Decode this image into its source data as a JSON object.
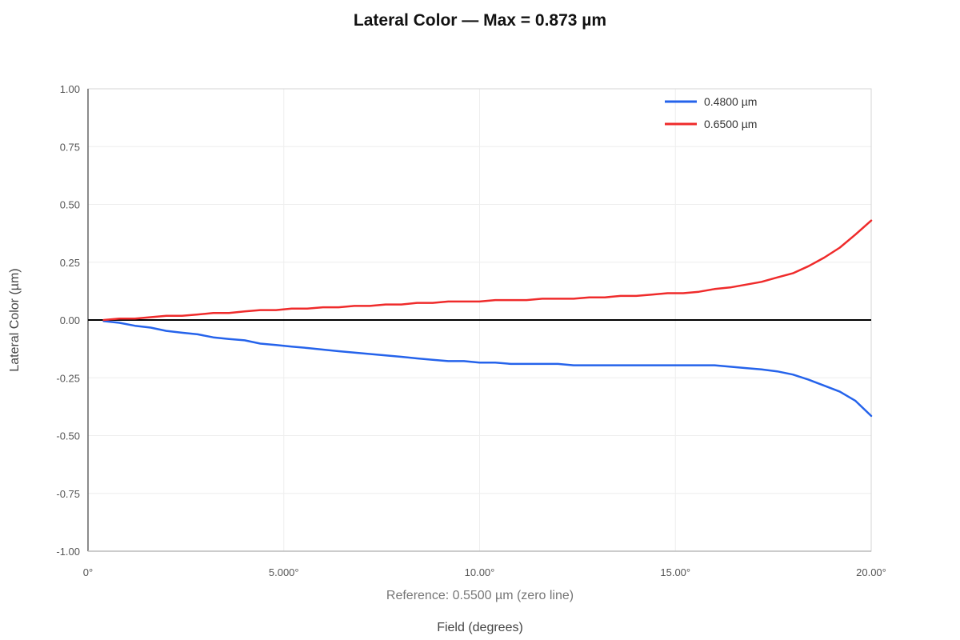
{
  "chart_data": {
    "type": "line",
    "title": "Lateral Color — Max = 0.873 µm",
    "xlabel": "Field (degrees)",
    "ylabel": "Lateral Color (µm)",
    "note": "Reference: 0.5500 µm (zero line)",
    "xlim": [
      0,
      20
    ],
    "ylim": [
      -1.0,
      1.0
    ],
    "x_ticks": [
      0,
      5,
      10,
      15,
      20
    ],
    "x_tick_labels": [
      "0°",
      "5.000°",
      "10.00°",
      "15.00°",
      "20.00°"
    ],
    "y_ticks": [
      1.0,
      0.75,
      0.5,
      0.25,
      0.0,
      -0.25,
      -0.5,
      -0.75,
      -1.0
    ],
    "y_tick_labels": [
      "1.00",
      "0.75",
      "0.50",
      "0.25",
      "0.00",
      "-0.25",
      "-0.50",
      "-0.75",
      "-1.00"
    ],
    "grid": true,
    "zero_line": true,
    "legend_position": "top-right",
    "series": [
      {
        "name": "0.4800 µm",
        "color": "#2563eb",
        "x": [
          0.4,
          0.8,
          1.2,
          1.6,
          2.0,
          2.4,
          2.8,
          3.2,
          3.6,
          4.0,
          4.4,
          4.8,
          5.2,
          5.6,
          6.0,
          6.4,
          6.8,
          7.2,
          7.6,
          8.0,
          8.4,
          8.8,
          9.2,
          9.6,
          10.0,
          10.4,
          10.8,
          11.2,
          11.6,
          12.0,
          12.4,
          12.8,
          13.2,
          13.6,
          14.0,
          14.4,
          14.8,
          15.2,
          15.6,
          16.0,
          16.4,
          16.8,
          17.2,
          17.6,
          18.0,
          18.4,
          18.8,
          19.2,
          19.6,
          20.0
        ],
        "y": [
          -0.005,
          -0.012,
          -0.025,
          -0.033,
          -0.047,
          -0.055,
          -0.062,
          -0.075,
          -0.082,
          -0.088,
          -0.102,
          -0.108,
          -0.115,
          -0.121,
          -0.128,
          -0.135,
          -0.141,
          -0.147,
          -0.153,
          -0.159,
          -0.166,
          -0.172,
          -0.178,
          -0.178,
          -0.184,
          -0.184,
          -0.19,
          -0.19,
          -0.19,
          -0.19,
          -0.196,
          -0.196,
          -0.196,
          -0.196,
          -0.196,
          -0.196,
          -0.196,
          -0.196,
          -0.196,
          -0.196,
          -0.202,
          -0.208,
          -0.214,
          -0.222,
          -0.236,
          -0.258,
          -0.284,
          -0.31,
          -0.35,
          -0.415
        ]
      },
      {
        "name": "0.6500 µm",
        "color": "#ef2b2b",
        "x": [
          0.4,
          0.8,
          1.2,
          1.6,
          2.0,
          2.4,
          2.8,
          3.2,
          3.6,
          4.0,
          4.4,
          4.8,
          5.2,
          5.6,
          6.0,
          6.4,
          6.8,
          7.2,
          7.6,
          8.0,
          8.4,
          8.8,
          9.2,
          9.6,
          10.0,
          10.4,
          10.8,
          11.2,
          11.6,
          12.0,
          12.4,
          12.8,
          13.2,
          13.6,
          14.0,
          14.4,
          14.8,
          15.2,
          15.6,
          16.0,
          16.4,
          16.8,
          17.2,
          17.6,
          18.0,
          18.4,
          18.8,
          19.2,
          19.6,
          20.0
        ],
        "y": [
          0.0,
          0.006,
          0.006,
          0.012,
          0.018,
          0.018,
          0.024,
          0.03,
          0.03,
          0.037,
          0.043,
          0.043,
          0.049,
          0.049,
          0.055,
          0.055,
          0.061,
          0.061,
          0.067,
          0.067,
          0.074,
          0.074,
          0.08,
          0.08,
          0.08,
          0.086,
          0.086,
          0.086,
          0.092,
          0.092,
          0.092,
          0.098,
          0.098,
          0.104,
          0.104,
          0.11,
          0.116,
          0.116,
          0.122,
          0.134,
          0.141,
          0.153,
          0.165,
          0.184,
          0.202,
          0.233,
          0.27,
          0.313,
          0.37,
          0.43
        ]
      }
    ]
  }
}
